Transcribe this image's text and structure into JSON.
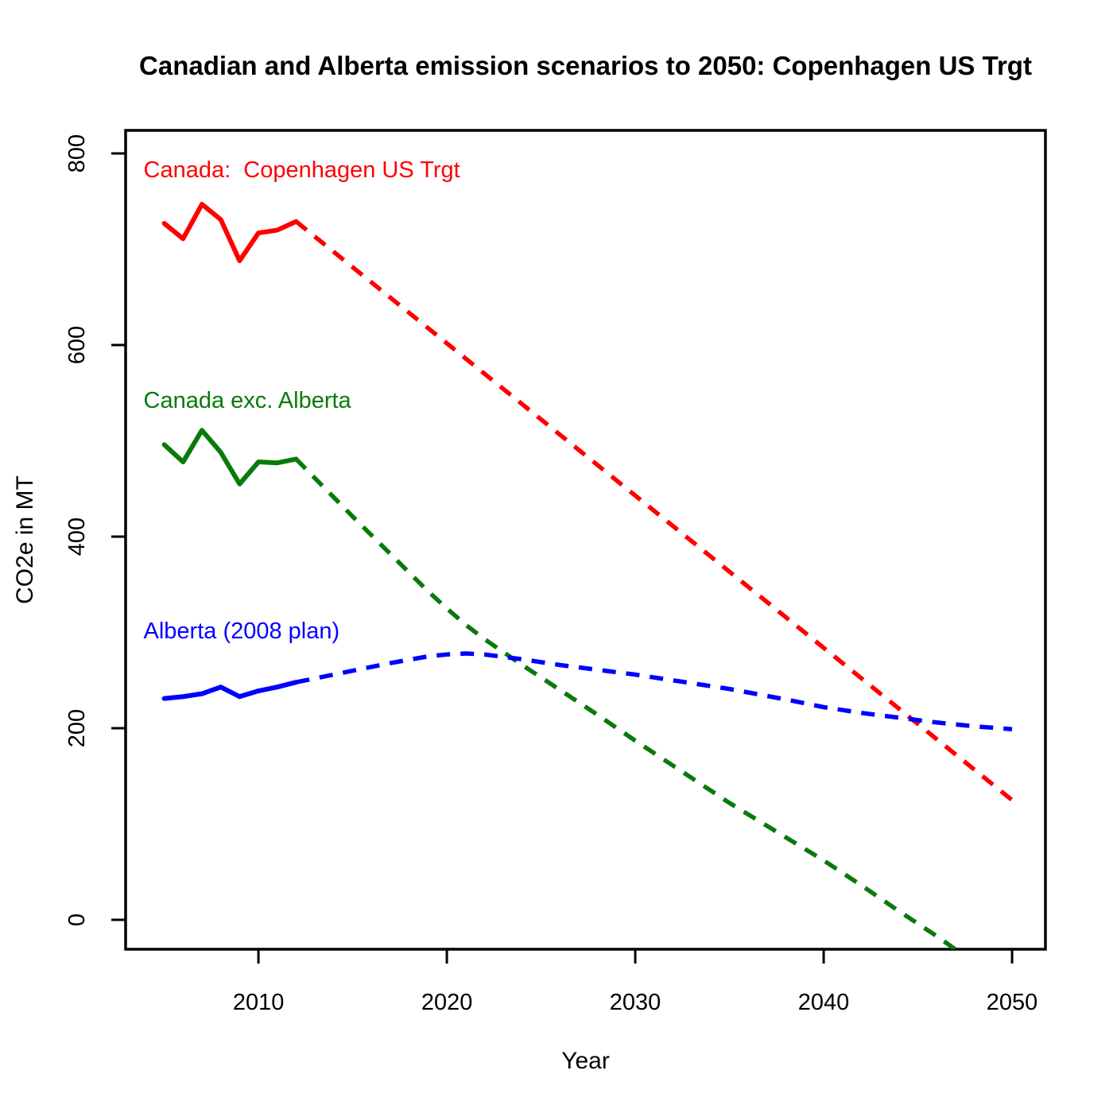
{
  "chart_data": {
    "type": "line",
    "title": "Canadian and Alberta emission scenarios to 2050: Copenhagen US Trgt",
    "xlabel": "Year",
    "ylabel": "CO2e in MT",
    "xlim": [
      2002.95,
      2051.77
    ],
    "ylim": [
      -30.7,
      824.1
    ],
    "x_ticks": [
      2010,
      2020,
      2030,
      2040,
      2050
    ],
    "y_ticks": [
      0,
      200,
      400,
      600,
      800
    ],
    "grid": false,
    "legend_position": "inline-annotations",
    "axis_color": "#000000",
    "series": [
      {
        "name": "canada-copenhagen-target",
        "color": "#ff0000",
        "annotation": {
          "text": "Canada:  Copenhagen US Trgt",
          "x": 2003.9,
          "y": 774
        },
        "solid": {
          "x": [
            2005,
            2006,
            2007,
            2008,
            2009,
            2010,
            2011,
            2012
          ],
          "y": [
            727,
            711,
            747,
            731,
            688,
            717,
            720,
            729
          ]
        },
        "dashed": {
          "x": [
            2012,
            2050
          ],
          "y": [
            729,
            125
          ]
        }
      },
      {
        "name": "canada-excluding-alberta",
        "color": "#0a7a0a",
        "annotation": {
          "text": "Canada exc. Alberta",
          "x": 2003.9,
          "y": 534
        },
        "solid": {
          "x": [
            2005,
            2006,
            2007,
            2008,
            2009,
            2010,
            2011,
            2012
          ],
          "y": [
            496,
            478,
            511,
            488,
            455,
            478,
            477,
            481
          ]
        },
        "dashed": {
          "x": [
            2012,
            2013,
            2015,
            2017,
            2019,
            2020,
            2021,
            2022,
            2024,
            2026,
            2028,
            2030,
            2032,
            2035,
            2038,
            2040,
            2042,
            2044,
            2046,
            2048,
            2050
          ],
          "y": [
            481,
            461,
            421,
            382,
            343,
            325,
            308,
            293,
            266,
            240,
            214,
            187,
            161,
            122,
            86,
            62,
            36,
            9,
            -17,
            -45,
            -74
          ]
        }
      },
      {
        "name": "alberta-2008-plan",
        "color": "#0000ff",
        "annotation": {
          "text": "Alberta (2008 plan)",
          "x": 2003.9,
          "y": 293
        },
        "solid": {
          "x": [
            2005,
            2006,
            2007,
            2008,
            2009,
            2010,
            2011,
            2012
          ],
          "y": [
            231,
            233,
            236,
            243,
            233,
            239,
            243,
            248
          ]
        },
        "dashed": {
          "x": [
            2012,
            2013,
            2015,
            2017,
            2019,
            2020,
            2021,
            2022,
            2024,
            2026,
            2028,
            2030,
            2032,
            2035,
            2038,
            2040,
            2042,
            2044,
            2046,
            2048,
            2050
          ],
          "y": [
            248,
            252,
            260,
            268,
            275,
            277,
            278,
            277,
            272,
            266,
            261,
            256,
            250,
            241,
            230,
            222,
            216,
            211,
            206,
            202,
            199
          ]
        }
      }
    ]
  }
}
